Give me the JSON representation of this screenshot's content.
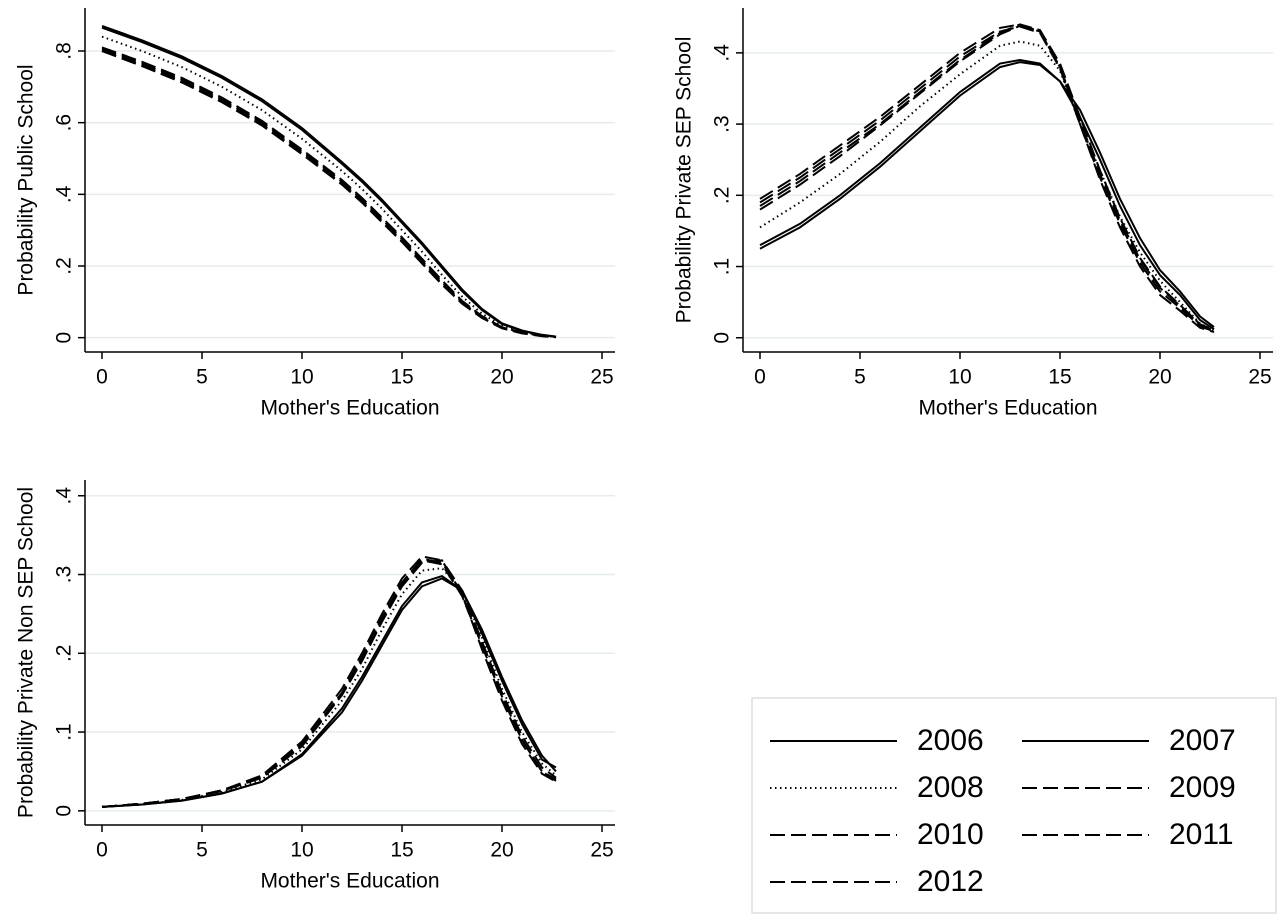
{
  "legend": {
    "position": "bottom-right",
    "columns": 2
  },
  "chart_data": [
    {
      "type": "line",
      "ylabel": "Probability Public School",
      "xlabel": "Mother's Education",
      "xlim": [
        -0.85,
        25.65
      ],
      "ylim": [
        -0.04,
        0.92
      ],
      "xticks": [
        0,
        5,
        10,
        15,
        20,
        25
      ],
      "yticks": [
        0,
        {
          "value": 0.2,
          "label": ".2"
        },
        {
          "value": 0.4,
          "label": ".4"
        },
        {
          "value": 0.6,
          "label": ".6"
        },
        {
          "value": 0.8,
          "label": ".8"
        }
      ],
      "grid": true,
      "x": [
        0,
        2,
        4,
        6,
        8,
        10,
        12,
        13,
        14,
        15,
        16,
        17,
        18,
        19,
        20,
        21,
        22,
        22.7
      ],
      "series": [
        {
          "name": "2006",
          "color": "#000000",
          "dash": "solid",
          "values": [
            0.87,
            0.83,
            0.785,
            0.73,
            0.665,
            0.585,
            0.49,
            0.44,
            0.385,
            0.325,
            0.265,
            0.2,
            0.135,
            0.08,
            0.04,
            0.02,
            0.008,
            0.003
          ]
        },
        {
          "name": "2007",
          "color": "#000000",
          "dash": "solid",
          "values": [
            0.865,
            0.825,
            0.78,
            0.725,
            0.66,
            0.58,
            0.485,
            0.435,
            0.38,
            0.32,
            0.26,
            0.195,
            0.13,
            0.077,
            0.038,
            0.019,
            0.007,
            0.003
          ]
        },
        {
          "name": "2008",
          "color": "#000000",
          "dash": "dot",
          "values": [
            0.84,
            0.8,
            0.755,
            0.7,
            0.635,
            0.555,
            0.465,
            0.415,
            0.36,
            0.3,
            0.24,
            0.175,
            0.115,
            0.067,
            0.033,
            0.016,
            0.006,
            0.002
          ]
        },
        {
          "name": "2009",
          "color": "#000000",
          "dash": "dash",
          "values": [
            0.805,
            0.765,
            0.72,
            0.665,
            0.6,
            0.52,
            0.435,
            0.385,
            0.33,
            0.275,
            0.215,
            0.155,
            0.1,
            0.058,
            0.028,
            0.014,
            0.005,
            0.002
          ]
        },
        {
          "name": "2010",
          "color": "#000000",
          "dash": "dash",
          "values": [
            0.8,
            0.76,
            0.715,
            0.66,
            0.595,
            0.515,
            0.43,
            0.38,
            0.325,
            0.27,
            0.21,
            0.15,
            0.097,
            0.056,
            0.027,
            0.013,
            0.005,
            0.002
          ]
        },
        {
          "name": "2011",
          "color": "#000000",
          "dash": "dash",
          "values": [
            0.81,
            0.77,
            0.725,
            0.67,
            0.605,
            0.525,
            0.44,
            0.39,
            0.335,
            0.28,
            0.22,
            0.16,
            0.103,
            0.06,
            0.029,
            0.014,
            0.005,
            0.002
          ]
        },
        {
          "name": "2012",
          "color": "#000000",
          "dash": "dash",
          "values": [
            0.8,
            0.758,
            0.712,
            0.657,
            0.592,
            0.512,
            0.427,
            0.377,
            0.322,
            0.267,
            0.207,
            0.148,
            0.095,
            0.055,
            0.026,
            0.012,
            0.004,
            0.001
          ]
        }
      ]
    },
    {
      "type": "line",
      "ylabel": "Probability Private SEP School",
      "xlabel": "Mother's Education",
      "xlim": [
        -0.85,
        25.65
      ],
      "ylim": [
        -0.02,
        0.463
      ],
      "xticks": [
        0,
        5,
        10,
        15,
        20,
        25
      ],
      "yticks": [
        0,
        {
          "value": 0.1,
          "label": ".1"
        },
        {
          "value": 0.2,
          "label": ".2"
        },
        {
          "value": 0.3,
          "label": ".3"
        },
        {
          "value": 0.4,
          "label": ".4"
        }
      ],
      "grid": true,
      "x": [
        0,
        2,
        4,
        6,
        8,
        10,
        12,
        13,
        14,
        15,
        16,
        17,
        18,
        19,
        20,
        21,
        22,
        22.7
      ],
      "series": [
        {
          "name": "2006",
          "color": "#000000",
          "dash": "solid",
          "values": [
            0.13,
            0.16,
            0.2,
            0.245,
            0.295,
            0.345,
            0.385,
            0.39,
            0.385,
            0.36,
            0.32,
            0.26,
            0.195,
            0.14,
            0.095,
            0.065,
            0.03,
            0.015
          ]
        },
        {
          "name": "2007",
          "color": "#000000",
          "dash": "solid",
          "values": [
            0.125,
            0.155,
            0.195,
            0.24,
            0.29,
            0.34,
            0.38,
            0.387,
            0.383,
            0.36,
            0.31,
            0.25,
            0.185,
            0.13,
            0.088,
            0.06,
            0.025,
            0.012
          ]
        },
        {
          "name": "2008",
          "color": "#000000",
          "dash": "dot",
          "values": [
            0.155,
            0.19,
            0.23,
            0.275,
            0.325,
            0.37,
            0.41,
            0.416,
            0.41,
            0.375,
            0.3,
            0.235,
            0.17,
            0.12,
            0.08,
            0.05,
            0.02,
            0.01
          ]
        },
        {
          "name": "2009",
          "color": "#000000",
          "dash": "dash",
          "values": [
            0.195,
            0.23,
            0.27,
            0.31,
            0.355,
            0.4,
            0.435,
            0.44,
            0.43,
            0.38,
            0.305,
            0.23,
            0.165,
            0.11,
            0.07,
            0.045,
            0.018,
            0.01
          ]
        },
        {
          "name": "2010",
          "color": "#000000",
          "dash": "dash",
          "values": [
            0.19,
            0.225,
            0.265,
            0.305,
            0.35,
            0.395,
            0.43,
            0.437,
            0.428,
            0.378,
            0.3,
            0.225,
            0.16,
            0.105,
            0.065,
            0.042,
            0.016,
            0.009
          ]
        },
        {
          "name": "2011",
          "color": "#000000",
          "dash": "dash",
          "values": [
            0.185,
            0.22,
            0.26,
            0.3,
            0.345,
            0.39,
            0.428,
            0.44,
            0.432,
            0.385,
            0.31,
            0.235,
            0.168,
            0.112,
            0.072,
            0.046,
            0.019,
            0.011
          ]
        },
        {
          "name": "2012",
          "color": "#000000",
          "dash": "dash",
          "values": [
            0.18,
            0.215,
            0.255,
            0.298,
            0.343,
            0.388,
            0.426,
            0.438,
            0.43,
            0.38,
            0.3,
            0.222,
            0.155,
            0.1,
            0.06,
            0.038,
            0.014,
            0.008
          ]
        }
      ]
    },
    {
      "type": "line",
      "ylabel": "Probability Private Non SEP School",
      "xlabel": "Mother's Education",
      "xlim": [
        -0.85,
        25.65
      ],
      "ylim": [
        -0.018,
        0.42
      ],
      "xticks": [
        0,
        5,
        10,
        15,
        20,
        25
      ],
      "yticks": [
        0,
        {
          "value": 0.1,
          "label": ".1"
        },
        {
          "value": 0.2,
          "label": ".2"
        },
        {
          "value": 0.3,
          "label": ".3"
        },
        {
          "value": 0.4,
          "label": ".4"
        }
      ],
      "grid": true,
      "x": [
        0,
        2,
        4,
        6,
        8,
        10,
        12,
        13,
        14,
        15,
        16,
        17,
        18,
        19,
        20,
        21,
        22,
        22.7
      ],
      "series": [
        {
          "name": "2006",
          "color": "#000000",
          "dash": "solid",
          "values": [
            0.005,
            0.008,
            0.013,
            0.022,
            0.037,
            0.07,
            0.125,
            0.165,
            0.21,
            0.255,
            0.285,
            0.295,
            0.28,
            0.23,
            0.17,
            0.115,
            0.07,
            0.05
          ]
        },
        {
          "name": "2007",
          "color": "#000000",
          "dash": "solid",
          "values": [
            0.005,
            0.008,
            0.013,
            0.022,
            0.037,
            0.072,
            0.13,
            0.17,
            0.215,
            0.26,
            0.29,
            0.298,
            0.28,
            0.225,
            0.165,
            0.11,
            0.065,
            0.055
          ]
        },
        {
          "name": "2008",
          "color": "#000000",
          "dash": "dot",
          "values": [
            0.005,
            0.008,
            0.014,
            0.024,
            0.04,
            0.078,
            0.14,
            0.18,
            0.23,
            0.275,
            0.305,
            0.308,
            0.28,
            0.22,
            0.155,
            0.1,
            0.06,
            0.045
          ]
        },
        {
          "name": "2009",
          "color": "#000000",
          "dash": "dash",
          "values": [
            0.005,
            0.009,
            0.015,
            0.026,
            0.044,
            0.085,
            0.15,
            0.195,
            0.245,
            0.29,
            0.32,
            0.315,
            0.275,
            0.21,
            0.145,
            0.09,
            0.05,
            0.038
          ]
        },
        {
          "name": "2010",
          "color": "#000000",
          "dash": "dash",
          "values": [
            0.005,
            0.009,
            0.015,
            0.026,
            0.043,
            0.083,
            0.148,
            0.192,
            0.242,
            0.288,
            0.318,
            0.313,
            0.273,
            0.21,
            0.145,
            0.09,
            0.05,
            0.04
          ]
        },
        {
          "name": "2011",
          "color": "#000000",
          "dash": "dash",
          "values": [
            0.005,
            0.009,
            0.015,
            0.025,
            0.042,
            0.082,
            0.147,
            0.19,
            0.24,
            0.285,
            0.315,
            0.318,
            0.28,
            0.215,
            0.15,
            0.095,
            0.055,
            0.042
          ]
        },
        {
          "name": "2012",
          "color": "#000000",
          "dash": "dash",
          "values": [
            0.005,
            0.009,
            0.015,
            0.026,
            0.045,
            0.088,
            0.155,
            0.2,
            0.25,
            0.295,
            0.323,
            0.318,
            0.275,
            0.205,
            0.14,
            0.085,
            0.047,
            0.037
          ]
        }
      ]
    }
  ]
}
